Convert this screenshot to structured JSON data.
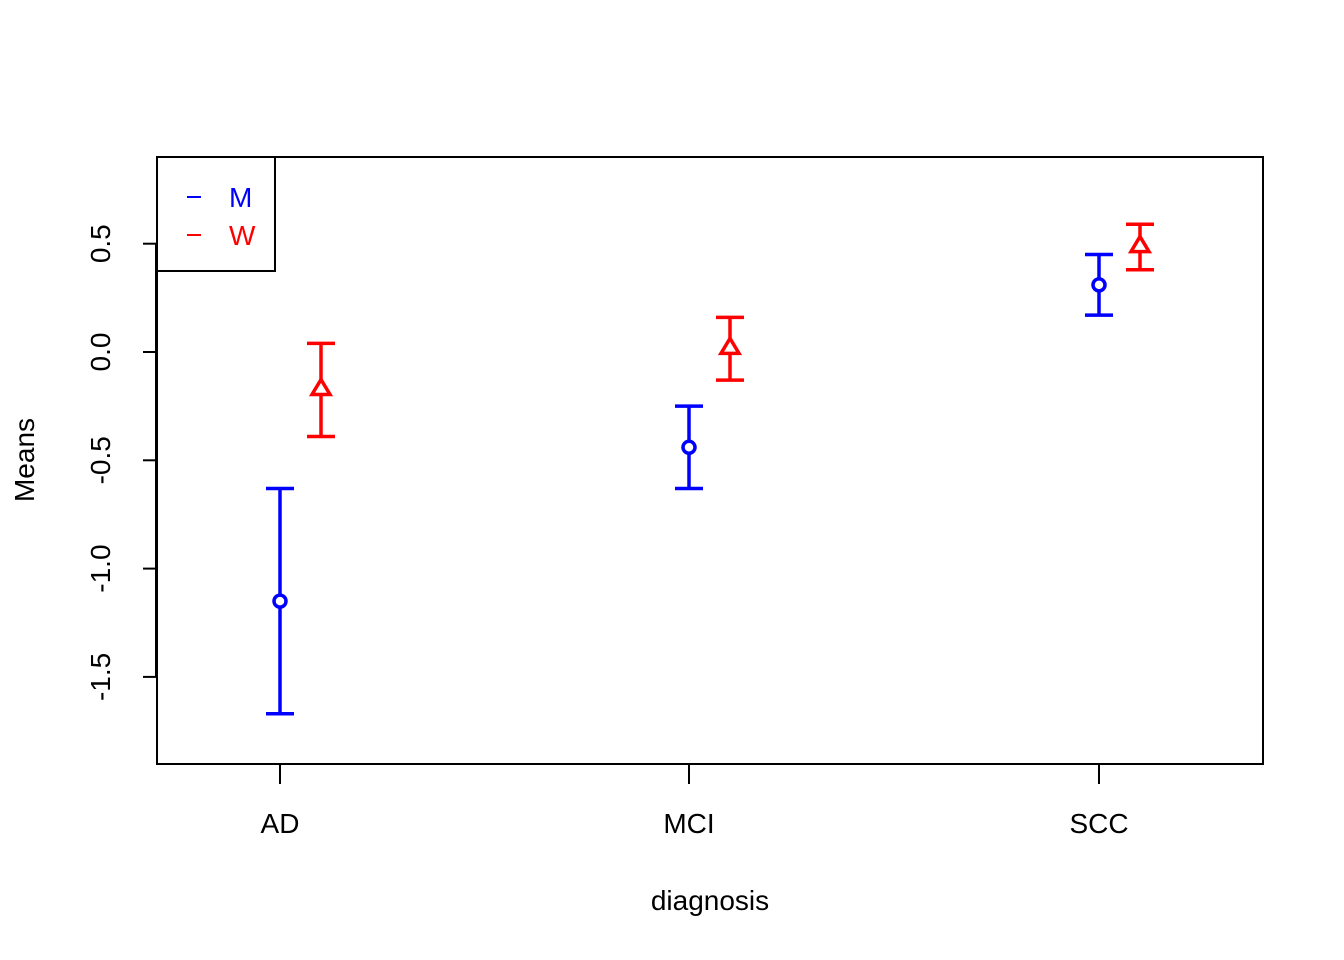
{
  "chart_data": {
    "type": "scatter",
    "title": "",
    "xlabel": "diagnosis",
    "ylabel": "Means",
    "categories": [
      "AD",
      "MCI",
      "SCC"
    ],
    "ylim": [
      -1.9,
      0.9
    ],
    "y_ticks": [
      -1.5,
      -1.0,
      -0.5,
      0.0,
      0.5
    ],
    "y_tick_labels": [
      "-1.5",
      "-1.0",
      "-0.5",
      "0.0",
      "0.5"
    ],
    "grid": false,
    "legend": {
      "position": "top-left",
      "entries": [
        "M",
        "W"
      ]
    },
    "series": [
      {
        "name": "M",
        "color": "#0000ff",
        "marker": "circle",
        "means": [
          -1.15,
          -0.44,
          0.31
        ],
        "lower": [
          -1.67,
          -0.63,
          0.17
        ],
        "upper": [
          -0.63,
          -0.25,
          0.45
        ]
      },
      {
        "name": "W",
        "color": "#ff0000",
        "marker": "triangle",
        "means": [
          -0.17,
          0.02,
          0.49
        ],
        "lower": [
          -0.39,
          -0.13,
          0.38
        ],
        "upper": [
          0.04,
          0.16,
          0.59
        ]
      }
    ]
  }
}
